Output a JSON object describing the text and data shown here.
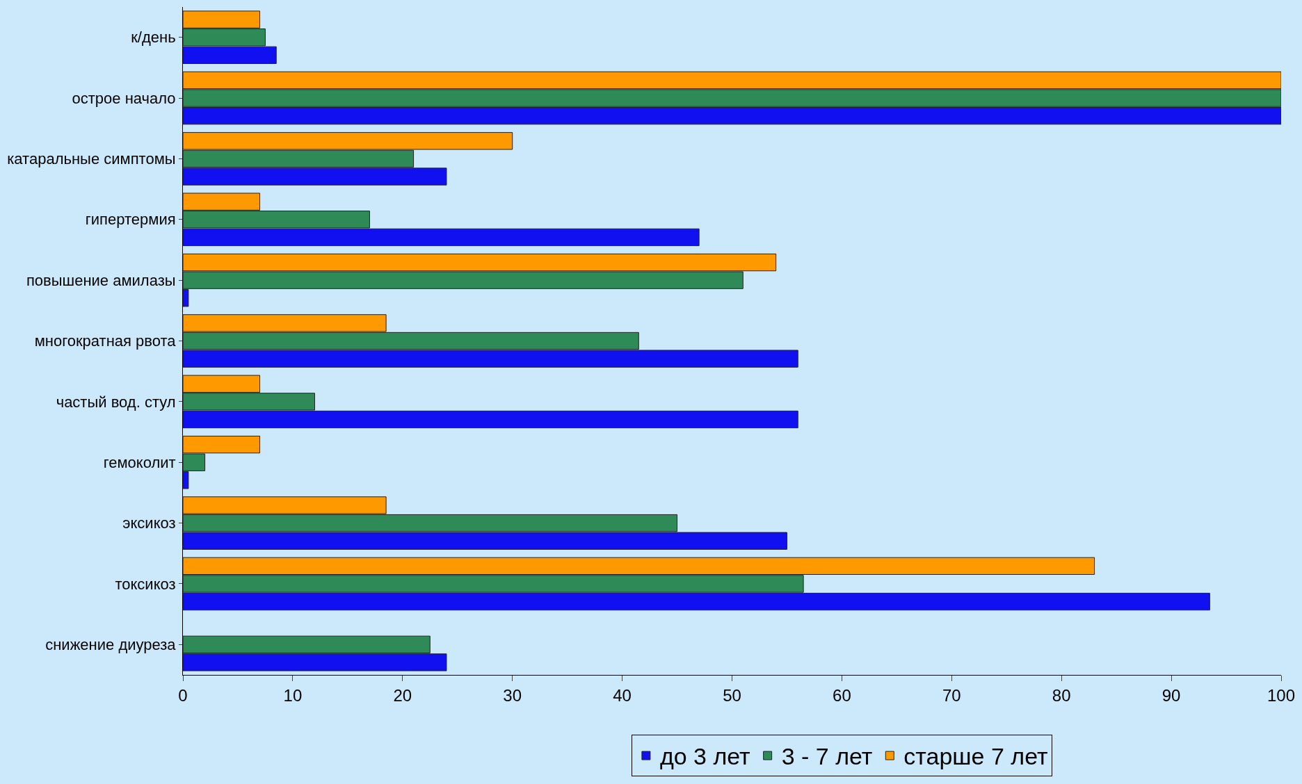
{
  "chart_data": {
    "type": "bar",
    "orientation": "horizontal",
    "categories": [
      "к/день",
      "острое начало",
      "катаральные симптомы",
      "гипертермия",
      "повышение амилазы",
      "многократная рвота",
      "частый вод. стул",
      "гемоколит",
      "эксикоз",
      "токсикоз",
      "снижение диуреза"
    ],
    "series": [
      {
        "name": "до 3 лет",
        "color": "#1010f0",
        "values": [
          8.5,
          100,
          24,
          47,
          0.5,
          56,
          56,
          0.5,
          55,
          93.5,
          24
        ]
      },
      {
        "name": "3 - 7 лет",
        "color": "#2e8b57",
        "values": [
          7.5,
          100,
          21,
          17,
          51,
          41.5,
          12,
          2,
          45,
          56.5,
          22.5
        ]
      },
      {
        "name": "старше 7 лет",
        "color": "#ff9900",
        "values": [
          7,
          100,
          30,
          7,
          54,
          18.5,
          7,
          7,
          18.5,
          83,
          null
        ]
      }
    ],
    "xlim": [
      0,
      100
    ],
    "xticks": [
      0,
      10,
      20,
      30,
      40,
      50,
      60,
      70,
      80,
      90,
      100
    ],
    "grid": false,
    "legend": "bottom"
  }
}
